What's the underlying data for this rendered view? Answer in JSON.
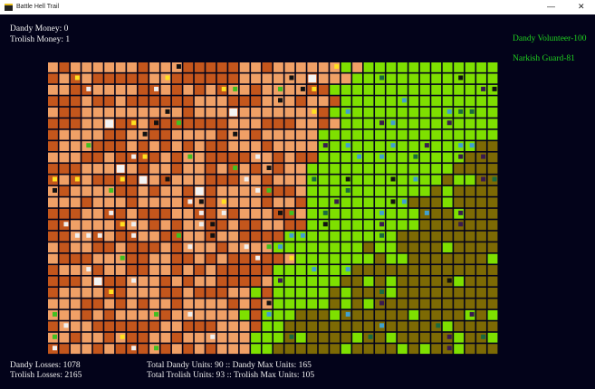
{
  "window": {
    "title": "Battle Hell Trail"
  },
  "hud": {
    "dandy_money": "Dandy Money: 0",
    "trolish_money": "Trolish Money: 1",
    "dandy_unit": "Dandy Volunteer-100",
    "narkish_unit": "Narkish Guard-81",
    "dandy_losses": "Dandy Losses: 1078",
    "trolish_losses": "Trolish Losses: 2165",
    "dandy_units": "Total Dandy Units: 90 :: Dandy Max Units: 165",
    "trolish_units": "Total Trolish Units: 93 :: Trolish Max Units: 105"
  }
}
